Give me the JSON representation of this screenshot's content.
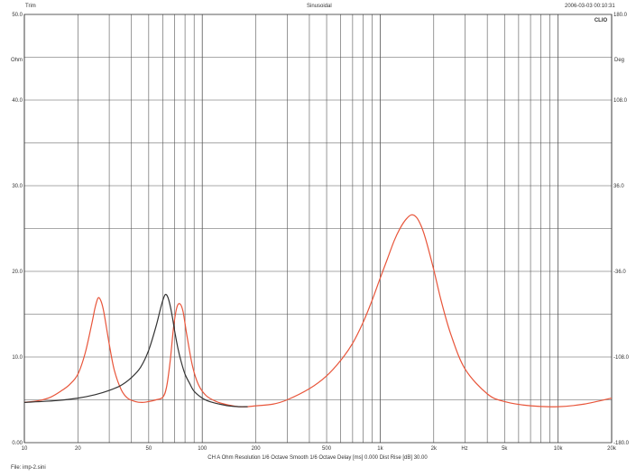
{
  "header": {
    "left": "Trim",
    "center": "Sinusoidal",
    "right": "2006-03-03 00:10:31",
    "logo": "CLIO"
  },
  "footer": {
    "settings": "CH A   Ohm   Resolution 1/6 Octave   Smooth 1/6 Octave   Delay [ms] 0.000   Dist Rise [dB] 30.00",
    "file": "File: imp-2.sini"
  },
  "chart_data": {
    "type": "line",
    "x_scale": "log",
    "xlim": [
      10,
      20000
    ],
    "ylim": [
      0,
      50
    ],
    "y2lim": [
      -180,
      180
    ],
    "grid": true,
    "ylabel": "Ohm",
    "y2label": "Deg",
    "xunit": "Hz",
    "x_tick_labels": [
      {
        "v": 10,
        "t": "10"
      },
      {
        "v": 20,
        "t": "20"
      },
      {
        "v": 50,
        "t": "50"
      },
      {
        "v": 100,
        "t": "100"
      },
      {
        "v": 200,
        "t": "200"
      },
      {
        "v": 500,
        "t": "500"
      },
      {
        "v": 1000,
        "t": "1k"
      },
      {
        "v": 2000,
        "t": "2k"
      },
      {
        "v": 5000,
        "t": "5k"
      },
      {
        "v": 10000,
        "t": "10k"
      },
      {
        "v": 20000,
        "t": "20k"
      }
    ],
    "y_tick_labels": [
      {
        "v": 0,
        "t": "0.00"
      },
      {
        "v": 10,
        "t": "10.0"
      },
      {
        "v": 20,
        "t": "20.0"
      },
      {
        "v": 30,
        "t": "30.0"
      },
      {
        "v": 40,
        "t": "40.0"
      },
      {
        "v": 50,
        "t": "50.0"
      }
    ],
    "y2_tick_labels": [
      {
        "v": -180,
        "t": "-180.0"
      },
      {
        "v": -108,
        "t": "-108.0"
      },
      {
        "v": -36,
        "t": "-36.0"
      },
      {
        "v": 36,
        "t": "36.0"
      },
      {
        "v": 108,
        "t": "108.0"
      },
      {
        "v": 180,
        "t": "180.0"
      }
    ],
    "series": [
      {
        "color": "#e8553a",
        "x": [
          10,
          12,
          14,
          16,
          18,
          20,
          22,
          24,
          25,
          26,
          27,
          28,
          30,
          32,
          35,
          38,
          42,
          46,
          50,
          55,
          60,
          63,
          66,
          69,
          72,
          75,
          78,
          82,
          88,
          95,
          105,
          120,
          140,
          160,
          180,
          200,
          250,
          300,
          400,
          500,
          600,
          700,
          800,
          900,
          1000,
          1100,
          1200,
          1300,
          1400,
          1500,
          1600,
          1700,
          1800,
          2000,
          2200,
          2500,
          3000,
          4000,
          5000,
          7000,
          10000,
          14000,
          20000
        ],
        "y": [
          4.7,
          4.9,
          5.3,
          6.0,
          6.8,
          8.0,
          10.5,
          14.0,
          15.8,
          16.9,
          16.5,
          15.2,
          11.5,
          8.5,
          6.2,
          5.2,
          4.8,
          4.7,
          4.8,
          5.0,
          5.3,
          6.5,
          9.5,
          13.5,
          15.8,
          16.2,
          15.3,
          12.5,
          9.0,
          6.8,
          5.5,
          4.8,
          4.4,
          4.2,
          4.2,
          4.3,
          4.5,
          5.0,
          6.3,
          7.8,
          9.6,
          11.6,
          14.0,
          16.6,
          19.2,
          21.5,
          23.6,
          25.1,
          26.1,
          26.6,
          26.3,
          25.3,
          23.8,
          20.2,
          16.6,
          12.6,
          8.6,
          5.7,
          4.8,
          4.3,
          4.2,
          4.5,
          5.2
        ]
      },
      {
        "color": "#333333",
        "x": [
          10,
          15,
          20,
          25,
          30,
          35,
          40,
          45,
          50,
          55,
          58,
          60,
          62,
          64,
          66,
          68,
          70,
          73,
          76,
          80,
          85,
          90,
          100,
          110,
          125,
          140,
          160,
          180
        ],
        "y": [
          4.7,
          4.9,
          5.2,
          5.6,
          6.1,
          6.7,
          7.6,
          8.8,
          10.8,
          13.6,
          15.5,
          16.6,
          17.3,
          17.0,
          16.0,
          14.6,
          13.0,
          11.0,
          9.5,
          8.0,
          6.9,
          6.0,
          5.2,
          4.8,
          4.5,
          4.3,
          4.2,
          4.2
        ]
      }
    ]
  }
}
